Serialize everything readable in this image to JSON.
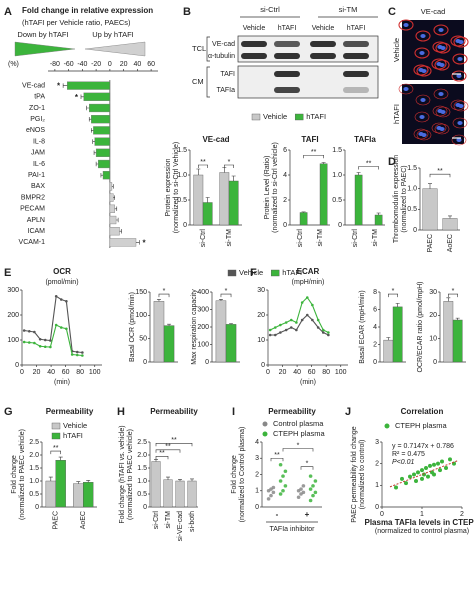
{
  "panel_labels": [
    "A",
    "B",
    "C",
    "D",
    "E",
    "F",
    "G",
    "H",
    "I",
    "J"
  ],
  "blot": {
    "groups": [
      "si-Ctrl",
      "si-TM"
    ],
    "lanes": [
      "Vehicle",
      "hTAFI",
      "Vehicle",
      "hTAFI"
    ],
    "sections": [
      "TCL",
      "CM"
    ],
    "bands": [
      "VE-cad",
      "α-tubulin",
      "TAFI",
      "TAFIa"
    ]
  },
  "images": {
    "title": "VE-cad",
    "rows": [
      "Vehicle",
      "hTAFI"
    ]
  },
  "chart_data": [
    {
      "type": "bar",
      "orientation": "horizontal",
      "title": "Fold change in relative expression",
      "subtitle": "(hTAFI per Vehicle ratio, PAECs)",
      "legend": [
        {
          "name": "Down by hTAFI",
          "color": "#3cb43c"
        },
        {
          "name": "Up by hTAFI",
          "color": "#d0d0d0"
        }
      ],
      "categories": [
        "VE-cad",
        "tPA",
        "ZO-1",
        "PGI₂",
        "eNOS",
        "IL-8",
        "JAM",
        "IL-6",
        "PAI-1",
        "BAX",
        "BMPR2",
        "PECAM",
        "APLN",
        "ICAM",
        "VCAM-1"
      ],
      "values": [
        -62,
        -38,
        -30,
        -27,
        -24,
        -22,
        -20,
        -17,
        -10,
        3,
        5,
        7,
        9,
        14,
        38
      ],
      "errors": [
        6,
        4,
        4,
        3,
        3,
        3,
        3,
        3,
        3,
        2,
        2,
        3,
        3,
        3,
        5
      ],
      "stars": [
        "*",
        "*",
        null,
        null,
        null,
        null,
        null,
        null,
        null,
        null,
        null,
        null,
        null,
        null,
        "*"
      ],
      "xlabel": "(%)",
      "xlim": [
        -90,
        70
      ],
      "xticks": [
        -80,
        -60,
        -40,
        -20,
        0,
        20,
        40,
        60
      ]
    },
    {
      "type": "bar",
      "title": "VE-cad",
      "ylabel": [
        "Protein expression",
        "(normalized to si-Ctrl Vehicle)"
      ],
      "categories": [
        "si-Ctrl",
        "si-TM"
      ],
      "series": [
        {
          "name": "Vehicle",
          "color": "#c8c8c8",
          "values": [
            1.0,
            1.05
          ],
          "errors": [
            0.12,
            0.1
          ]
        },
        {
          "name": "hTAFI",
          "color": "#3cb43c",
          "values": [
            0.45,
            0.88
          ],
          "errors": [
            0.1,
            0.1
          ]
        }
      ],
      "ylim": [
        0,
        1.5
      ],
      "yticks": [
        0,
        0.5,
        {
          "value": 1,
          "label": "1.0"
        },
        1.5
      ],
      "significance": [
        "**",
        "*"
      ]
    },
    {
      "type": "bar",
      "title": "TAFI",
      "ylabel": [
        "Protein Level (Ratio)",
        "(normalized to si-Ctrl vehicle)"
      ],
      "categories": [
        "si-Ctrl",
        "si-TM"
      ],
      "series": [
        {
          "color": "#c8c8c8",
          "values": [
            0,
            0
          ]
        },
        {
          "color": "#3cb43c",
          "values": [
            1.0,
            4.9
          ],
          "errors": [
            0.05,
            0.1
          ]
        }
      ],
      "ylim": [
        0,
        6
      ],
      "yticks": [
        0,
        2,
        4,
        6
      ],
      "significance": [
        "**"
      ]
    },
    {
      "type": "bar",
      "title": "TAFIa",
      "categories": [
        "si-Ctrl",
        "si-TM"
      ],
      "series": [
        {
          "color": "#c8c8c8",
          "values": [
            0,
            0
          ]
        },
        {
          "color": "#3cb43c",
          "values": [
            1.0,
            0.2
          ],
          "errors": [
            0.05,
            0.04
          ]
        }
      ],
      "ylim": [
        0,
        1.5
      ],
      "yticks": [
        0,
        0.5,
        {
          "value": 1,
          "label": "1.0"
        },
        1.5
      ],
      "significance": [
        "**"
      ]
    },
    {
      "type": "bar",
      "ylabel": [
        "Thrombomodulin expression",
        "(normalized to PAEC)"
      ],
      "categories": [
        "PAEC",
        "AoEC"
      ],
      "series": [
        {
          "color": "#c8c8c8",
          "values": [
            1.0,
            0.28
          ],
          "errors": [
            0.12,
            0.06
          ]
        }
      ],
      "ylim": [
        0,
        1.5
      ],
      "yticks": [
        0,
        0.5,
        {
          "value": 1,
          "label": "1.0"
        },
        1.5
      ],
      "significance": [
        "**"
      ]
    },
    {
      "type": "line",
      "title": "OCR",
      "subtitle": "(pmol/min)",
      "xlabel": "(min)",
      "x": [
        3,
        10,
        17,
        25,
        32,
        39,
        47,
        54,
        61,
        69,
        76,
        83
      ],
      "series": [
        {
          "name": "Vehicle",
          "color": "#555555",
          "values": [
            138,
            135,
            132,
            103,
            100,
            98,
            275,
            262,
            255,
            55,
            52,
            50
          ]
        },
        {
          "name": "hTAFI",
          "color": "#3cb43c",
          "values": [
            92,
            90,
            88,
            75,
            73,
            72,
            160,
            150,
            145,
            42,
            40,
            38
          ]
        }
      ],
      "xlim": [
        0,
        110
      ],
      "xticks": [
        0,
        20,
        40,
        60,
        80,
        100
      ],
      "ylim": [
        0,
        300
      ],
      "yticks": [
        0,
        100,
        200,
        300
      ]
    },
    {
      "type": "bar",
      "ylabel": "Basal OCR (pmol/min)",
      "categories": [
        null
      ],
      "series": [
        {
          "color": "#c8c8c8",
          "values": [
            130
          ],
          "errors": [
            4
          ]
        },
        {
          "color": "#3cb43c",
          "values": [
            78
          ],
          "errors": [
            3
          ]
        }
      ],
      "ylim": [
        0,
        150
      ],
      "yticks": [
        0,
        50,
        100,
        150
      ],
      "significance": [
        "*"
      ]
    },
    {
      "type": "bar",
      "ylabel": "Max respiration capacity",
      "categories": [
        null
      ],
      "series": [
        {
          "color": "#c8c8c8",
          "values": [
            350
          ],
          "errors": [
            8
          ]
        },
        {
          "color": "#3cb43c",
          "values": [
            215
          ],
          "errors": [
            5
          ]
        }
      ],
      "ylim": [
        0,
        400
      ],
      "yticks": [
        0,
        100,
        200,
        300,
        400
      ],
      "significance": [
        "*"
      ]
    },
    {
      "type": "line",
      "title": "ECAR",
      "subtitle": "(mpH/min)",
      "xlabel": "(min)",
      "x": [
        3,
        10,
        17,
        25,
        32,
        39,
        47,
        54,
        61,
        69,
        76,
        83
      ],
      "series": [
        {
          "color": "#555555",
          "values": [
            12,
            12,
            13,
            14,
            15,
            14,
            18,
            20,
            18,
            15,
            13,
            12
          ]
        },
        {
          "color": "#3cb43c",
          "values": [
            14,
            15,
            16,
            17,
            18,
            17,
            25,
            27,
            24,
            18,
            14,
            13
          ]
        }
      ],
      "xlim": [
        0,
        110
      ],
      "xticks": [
        0,
        20,
        40,
        60,
        80,
        100
      ],
      "ylim": [
        0,
        30
      ],
      "yticks": [
        0,
        10,
        20,
        30
      ]
    },
    {
      "type": "bar",
      "ylabel": "Basal ECAR (mpH/min)",
      "categories": [
        null
      ],
      "series": [
        {
          "color": "#c8c8c8",
          "values": [
            2.5
          ],
          "errors": [
            0.3
          ]
        },
        {
          "color": "#3cb43c",
          "values": [
            6.3
          ],
          "errors": [
            0.4
          ]
        }
      ],
      "ylim": [
        0,
        8
      ],
      "yticks": [
        0,
        2,
        4,
        6,
        8
      ],
      "significance": [
        "*"
      ]
    },
    {
      "type": "bar",
      "ylabel": "OCR/ECAR ratio (pmol/mpH)",
      "categories": [
        null
      ],
      "series": [
        {
          "color": "#c8c8c8",
          "values": [
            26
          ],
          "errors": [
            1.5
          ]
        },
        {
          "color": "#3cb43c",
          "values": [
            18
          ],
          "errors": [
            0.8
          ]
        }
      ],
      "ylim": [
        0,
        30
      ],
      "yticks": [
        0,
        10,
        20,
        30
      ],
      "significance": [
        "*"
      ]
    },
    {
      "type": "bar",
      "title": "Permeability",
      "ylabel": [
        "Fold change",
        "(normalized to PAEC vehicle)"
      ],
      "categories": [
        "PAEC",
        "AoEC"
      ],
      "series": [
        {
          "name": "Vehicle",
          "color": "#c8c8c8",
          "values": [
            1.0,
            0.9
          ],
          "errors": [
            0.15,
            0.08
          ]
        },
        {
          "name": "hTAFI",
          "color": "#3cb43c",
          "values": [
            1.8,
            0.95
          ],
          "errors": [
            0.12,
            0.07
          ]
        }
      ],
      "ylim": [
        0,
        2.5
      ],
      "yticks": [
        0,
        0.5,
        {
          "value": 1,
          "label": "1.0"
        },
        1.5,
        {
          "value": 2,
          "label": "2.0"
        },
        2.5
      ],
      "significance": [
        "**"
      ]
    },
    {
      "type": "bar",
      "title": "Permeability",
      "ylabel": [
        "Fold change (hTAFI vs. vehicle)",
        "(normalized to PAEC vehicle)"
      ],
      "categories": [
        "si-Ctrl",
        "si-TM",
        "si-VE-cad",
        "si-both"
      ],
      "series": [
        {
          "color": "#c8c8c8",
          "values": [
            1.75,
            1.05,
            1.0,
            1.0
          ],
          "errors": [
            0.08,
            0.1,
            0.06,
            0.08
          ]
        }
      ],
      "ylim": [
        0,
        2.5
      ],
      "yticks": [
        0,
        0.5,
        {
          "value": 1,
          "label": "1.0"
        },
        1.5,
        {
          "value": 2,
          "label": "2.0"
        },
        2.5
      ],
      "significance": [
        "**",
        "**",
        "**"
      ]
    },
    {
      "type": "strip",
      "title": "Permeability",
      "ylabel": [
        "Fold change",
        "(normalized to Control plasma)"
      ],
      "xlabel": "TAFIa inhibitor",
      "categories": [
        "-",
        "+"
      ],
      "series": [
        {
          "name": "Control plasma",
          "color": "#888888",
          "values": [
            [
              0.5,
              0.7,
              0.9,
              1.0,
              1.1,
              1.2
            ],
            [
              0.6,
              0.8,
              0.9,
              1.0,
              1.1,
              1.3
            ]
          ]
        },
        {
          "name": "CTEPH plasma",
          "color": "#3cb43c",
          "values": [
            [
              0.8,
              1.0,
              1.3,
              1.6,
              1.9,
              2.2,
              2.6
            ],
            [
              0.4,
              0.7,
              0.9,
              1.1,
              1.3,
              1.6,
              1.9
            ]
          ]
        }
      ],
      "ylim": [
        0,
        4
      ],
      "yticks": [
        0,
        1,
        2,
        3,
        4
      ],
      "significance": [
        "**",
        "*",
        "*"
      ]
    },
    {
      "type": "scatter",
      "title": "Correlation",
      "ylabel": [
        "PAEC permeability fold change",
        "(normalized to control)"
      ],
      "xlabel": [
        "Plasma TAFIa levels in CTEPH",
        "(normalized to control plasma)"
      ],
      "x": [
        0.35,
        0.5,
        0.6,
        0.7,
        0.8,
        0.85,
        0.9,
        1.0,
        1.0,
        1.05,
        1.1,
        1.15,
        1.2,
        1.25,
        1.3,
        1.4,
        1.45,
        1.5,
        1.6,
        1.7,
        1.8,
        1.3
      ],
      "series": [
        {
          "name": "CTEPH plasma",
          "color": "#3cb43c",
          "values": [
            0.9,
            1.3,
            1.1,
            1.4,
            1.5,
            1.2,
            1.6,
            1.3,
            1.7,
            1.5,
            1.8,
            1.4,
            1.9,
            1.6,
            1.5,
            2.0,
            1.7,
            2.1,
            1.8,
            2.2,
            2.0,
            1.95
          ]
        }
      ],
      "trendline": {
        "slope": 0.7147,
        "intercept": 0.786,
        "color": "#c0392b"
      },
      "annotations": [
        "y = 0.7147x + 0.786",
        "R² = 0.475",
        "P<0.01"
      ],
      "xlim": [
        0,
        2
      ],
      "xticks": [
        0,
        1,
        2
      ],
      "ylim": [
        0,
        3
      ],
      "yticks": [
        0,
        1,
        2,
        3
      ]
    }
  ]
}
